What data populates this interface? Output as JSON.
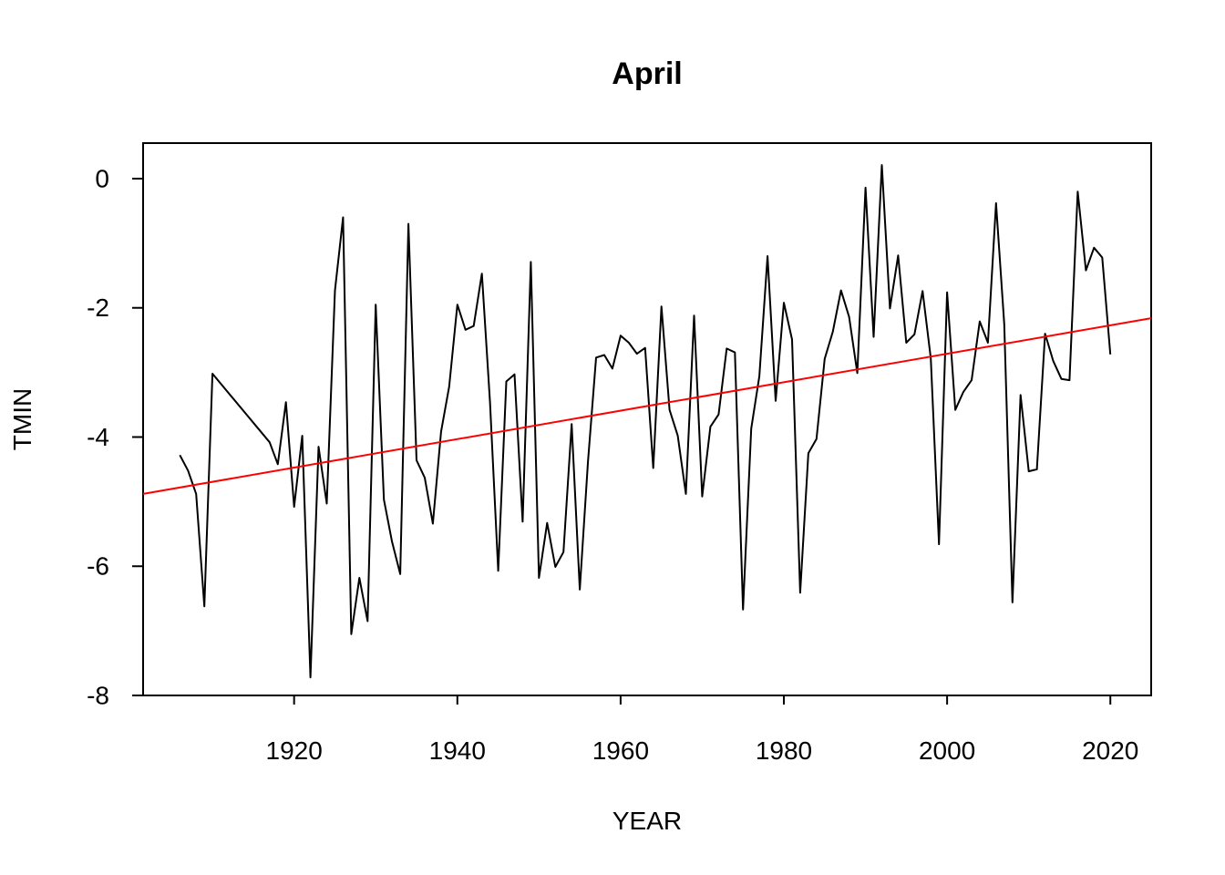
{
  "chart_data": {
    "type": "line",
    "title": "April",
    "xlabel": "YEAR",
    "ylabel": "TMIN",
    "xlim": [
      1901.5,
      2025
    ],
    "ylim": [
      -8.0,
      0.55
    ],
    "x_ticks": [
      1920,
      1940,
      1960,
      1980,
      2000,
      2020
    ],
    "y_ticks": [
      -8,
      -6,
      -4,
      -2,
      0
    ],
    "grid": false,
    "series": [
      {
        "color": "#000000",
        "x": [
          1906,
          1907,
          1908,
          1909,
          1910,
          1917,
          1918,
          1919,
          1920,
          1921,
          1922,
          1923,
          1924,
          1925,
          1926,
          1927,
          1928,
          1929,
          1930,
          1931,
          1932,
          1933,
          1934,
          1935,
          1936,
          1937,
          1938,
          1939,
          1940,
          1941,
          1942,
          1943,
          1944,
          1945,
          1946,
          1947,
          1948,
          1949,
          1950,
          1951,
          1952,
          1953,
          1954,
          1955,
          1956,
          1957,
          1958,
          1959,
          1960,
          1961,
          1962,
          1963,
          1964,
          1965,
          1966,
          1967,
          1968,
          1969,
          1970,
          1971,
          1972,
          1973,
          1974,
          1975,
          1976,
          1977,
          1978,
          1979,
          1980,
          1981,
          1982,
          1983,
          1984,
          1985,
          1986,
          1987,
          1988,
          1989,
          1990,
          1991,
          1992,
          1993,
          1994,
          1995,
          1996,
          1997,
          1998,
          1999,
          2000,
          2001,
          2002,
          2003,
          2004,
          2005,
          2006,
          2007,
          2008,
          2009,
          2010,
          2011,
          2012,
          2013,
          2014,
          2015,
          2016,
          2017,
          2018,
          2019,
          2020
        ],
        "values": [
          -4.28,
          -4.52,
          -4.88,
          -6.62,
          -3.02,
          -4.08,
          -4.42,
          -3.46,
          -5.08,
          -3.98,
          -7.72,
          -4.15,
          -5.03,
          -1.73,
          -0.6,
          -7.05,
          -6.18,
          -6.85,
          -1.95,
          -4.97,
          -5.62,
          -6.12,
          -0.7,
          -4.36,
          -4.63,
          -5.34,
          -3.92,
          -3.22,
          -1.95,
          -2.34,
          -2.28,
          -1.47,
          -3.46,
          -6.07,
          -3.14,
          -3.03,
          -5.31,
          -1.29,
          -6.18,
          -5.33,
          -6.01,
          -5.78,
          -3.8,
          -6.36,
          -4.38,
          -2.77,
          -2.73,
          -2.94,
          -2.43,
          -2.54,
          -2.71,
          -2.62,
          -4.48,
          -1.98,
          -3.58,
          -3.98,
          -4.88,
          -2.12,
          -4.92,
          -3.84,
          -3.65,
          -2.63,
          -2.69,
          -6.67,
          -3.87,
          -3.06,
          -1.2,
          -3.44,
          -1.92,
          -2.49,
          -6.41,
          -4.25,
          -4.03,
          -2.79,
          -2.37,
          -1.73,
          -2.14,
          -3.01,
          -0.14,
          -2.45,
          0.21,
          -2.01,
          -1.19,
          -2.54,
          -2.41,
          -1.74,
          -2.78,
          -5.66,
          -1.76,
          -3.58,
          -3.3,
          -3.12,
          -2.21,
          -2.54,
          -0.38,
          -2.25,
          -6.56,
          -3.35,
          -4.53,
          -4.5,
          -2.4,
          -2.82,
          -3.1,
          -3.12,
          -0.2,
          -1.42,
          -1.07,
          -1.22,
          -2.72
        ]
      },
      {
        "color": "#ff0000",
        "x": [
          1901.5,
          2025
        ],
        "values": [
          -4.88,
          -2.16
        ]
      }
    ]
  }
}
